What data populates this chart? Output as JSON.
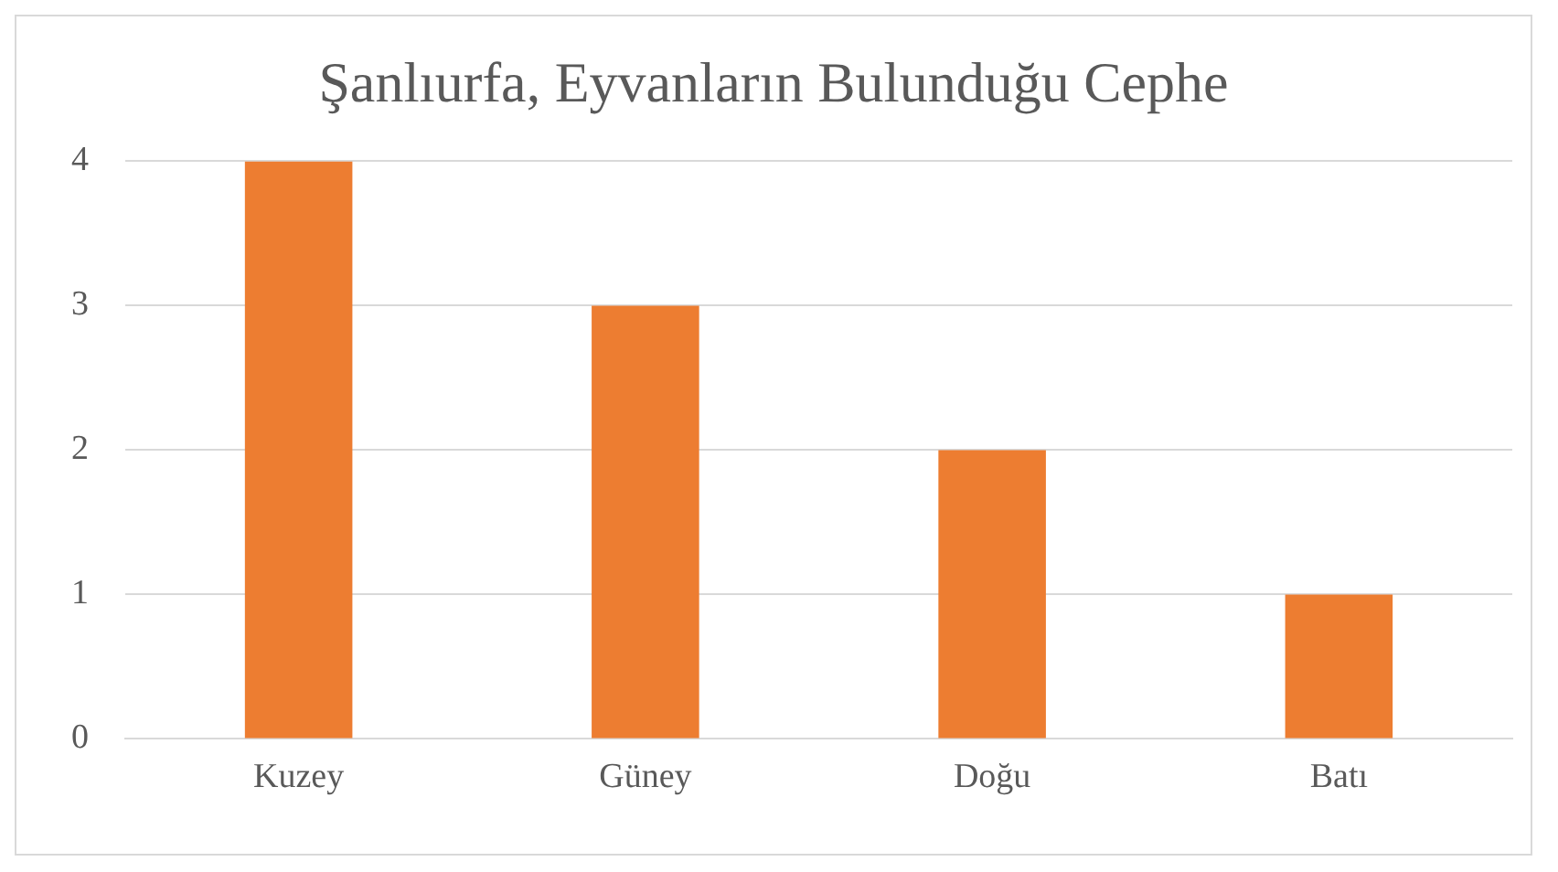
{
  "chart_data": {
    "type": "bar",
    "title": "Şanlıurfa, Eyvanların Bulunduğu Cephe",
    "categories": [
      "Kuzey",
      "Güney",
      "Doğu",
      "Batı"
    ],
    "values": [
      4,
      3,
      2,
      1
    ],
    "color": "#ed7d31",
    "ylim": [
      0,
      4
    ],
    "yticks": [
      0,
      1,
      2,
      3,
      4
    ],
    "grid": "y"
  }
}
